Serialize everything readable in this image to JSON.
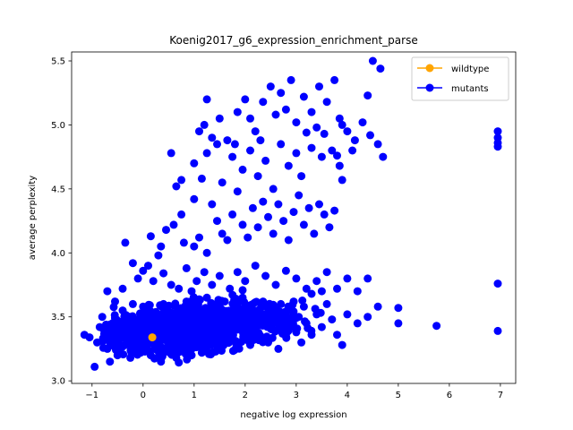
{
  "chart_data": {
    "type": "scatter",
    "title": "Koenig2017_g6_expression_enrichment_parse",
    "xlabel": "negative log expression",
    "ylabel": "average perplexity",
    "xlim": [
      -1.4,
      7.3
    ],
    "ylim": [
      2.98,
      5.57
    ],
    "xticks": [
      -1,
      0,
      1,
      2,
      3,
      4,
      5,
      6,
      7
    ],
    "yticks": [
      3.0,
      3.5,
      4.0,
      4.5,
      5.0,
      5.5
    ],
    "xtick_labels": [
      "−1",
      "0",
      "1",
      "2",
      "3",
      "4",
      "5",
      "6",
      "7"
    ],
    "ytick_labels": [
      "3.0",
      "3.5",
      "4.0",
      "4.5",
      "5.0",
      "5.5"
    ],
    "grid": false,
    "legend_position": "top-right",
    "series": [
      {
        "name": "wildtype",
        "color": "#ffa500",
        "points": [
          [
            0.18,
            3.34
          ]
        ]
      },
      {
        "name": "mutants",
        "color": "#0000ff",
        "points": [
          [
            -1.15,
            3.36
          ],
          [
            -1.05,
            3.34
          ],
          [
            -0.95,
            3.11
          ],
          [
            -0.9,
            3.3
          ],
          [
            -0.85,
            3.42
          ],
          [
            -0.8,
            3.5
          ],
          [
            -0.75,
            3.38
          ],
          [
            -0.7,
            3.25
          ],
          [
            -0.65,
            3.15
          ],
          [
            -0.6,
            3.45
          ],
          [
            -0.55,
            3.62
          ],
          [
            -0.5,
            3.2
          ],
          [
            -0.45,
            3.35
          ],
          [
            -0.4,
            3.55
          ],
          [
            -0.35,
            3.28
          ],
          [
            -0.3,
            3.4
          ],
          [
            -0.25,
            3.18
          ],
          [
            -0.2,
            3.6
          ],
          [
            -0.15,
            3.32
          ],
          [
            -0.1,
            3.48
          ],
          [
            -0.05,
            3.22
          ],
          [
            0.0,
            3.58
          ],
          [
            0.05,
            3.3
          ],
          [
            0.1,
            3.42
          ],
          [
            0.15,
            3.2
          ],
          [
            0.2,
            3.52
          ],
          [
            0.25,
            3.28
          ],
          [
            0.3,
            3.46
          ],
          [
            0.35,
            3.15
          ],
          [
            0.4,
            3.6
          ],
          [
            0.45,
            3.38
          ],
          [
            0.5,
            3.24
          ],
          [
            0.55,
            3.5
          ],
          [
            0.6,
            3.33
          ],
          [
            0.65,
            3.18
          ],
          [
            0.7,
            3.55
          ],
          [
            0.75,
            3.4
          ],
          [
            0.8,
            3.27
          ],
          [
            0.85,
            3.62
          ],
          [
            0.9,
            3.35
          ],
          [
            0.95,
            3.2
          ],
          [
            1.0,
            3.48
          ],
          [
            1.05,
            3.3
          ],
          [
            1.1,
            3.56
          ],
          [
            1.15,
            3.22
          ],
          [
            1.2,
            3.42
          ],
          [
            1.25,
            3.65
          ],
          [
            1.3,
            3.28
          ],
          [
            1.35,
            3.5
          ],
          [
            1.4,
            3.36
          ],
          [
            1.45,
            3.58
          ],
          [
            1.5,
            3.25
          ],
          [
            1.55,
            3.44
          ],
          [
            1.6,
            3.62
          ],
          [
            1.65,
            3.32
          ],
          [
            1.7,
            3.5
          ],
          [
            1.75,
            3.4
          ],
          [
            1.8,
            3.58
          ],
          [
            1.85,
            3.3
          ],
          [
            1.9,
            3.46
          ],
          [
            1.95,
            3.65
          ],
          [
            2.0,
            3.38
          ],
          [
            2.05,
            3.52
          ],
          [
            2.1,
            3.28
          ],
          [
            2.15,
            3.6
          ],
          [
            2.2,
            3.42
          ],
          [
            2.25,
            3.55
          ],
          [
            2.3,
            3.35
          ],
          [
            2.35,
            3.62
          ],
          [
            2.4,
            3.48
          ],
          [
            2.45,
            3.3
          ],
          [
            2.5,
            3.58
          ],
          [
            2.55,
            3.4
          ],
          [
            2.6,
            3.52
          ],
          [
            2.65,
            3.25
          ],
          [
            2.7,
            3.6
          ],
          [
            2.75,
            3.45
          ],
          [
            2.8,
            3.35
          ],
          [
            2.85,
            3.55
          ],
          [
            2.9,
            3.42
          ],
          [
            2.95,
            3.62
          ],
          [
            3.0,
            3.38
          ],
          [
            3.05,
            3.5
          ],
          [
            3.1,
            3.3
          ],
          [
            3.15,
            3.58
          ],
          [
            3.2,
            3.45
          ],
          [
            3.3,
            3.36
          ],
          [
            3.4,
            3.52
          ],
          [
            3.5,
            3.42
          ],
          [
            3.6,
            3.6
          ],
          [
            3.7,
            3.48
          ],
          [
            3.8,
            3.36
          ],
          [
            3.9,
            3.28
          ],
          [
            4.0,
            3.52
          ],
          [
            4.2,
            3.45
          ],
          [
            4.4,
            3.5
          ],
          [
            4.6,
            3.58
          ],
          [
            5.0,
            3.57
          ],
          [
            5.0,
            3.45
          ],
          [
            5.75,
            3.43
          ],
          [
            6.95,
            3.76
          ],
          [
            6.95,
            3.39
          ],
          [
            -0.7,
            3.7
          ],
          [
            -0.4,
            3.72
          ],
          [
            -0.35,
            4.08
          ],
          [
            -0.2,
            3.92
          ],
          [
            -0.1,
            3.8
          ],
          [
            0.0,
            3.86
          ],
          [
            0.1,
            3.9
          ],
          [
            0.2,
            3.78
          ],
          [
            0.3,
            3.98
          ],
          [
            0.4,
            3.84
          ],
          [
            0.55,
            3.75
          ],
          [
            0.7,
            3.72
          ],
          [
            0.85,
            3.88
          ],
          [
            0.95,
            3.7
          ],
          [
            1.05,
            3.78
          ],
          [
            1.2,
            3.85
          ],
          [
            1.35,
            3.75
          ],
          [
            1.5,
            3.82
          ],
          [
            1.7,
            3.72
          ],
          [
            1.85,
            3.85
          ],
          [
            2.0,
            3.78
          ],
          [
            2.2,
            3.9
          ],
          [
            2.4,
            3.82
          ],
          [
            2.6,
            3.75
          ],
          [
            2.8,
            3.86
          ],
          [
            3.0,
            3.8
          ],
          [
            3.2,
            3.72
          ],
          [
            3.4,
            3.78
          ],
          [
            3.6,
            3.85
          ],
          [
            3.8,
            3.72
          ],
          [
            4.0,
            3.8
          ],
          [
            4.2,
            3.7
          ],
          [
            4.4,
            3.8
          ],
          [
            3.3,
            3.68
          ],
          [
            3.5,
            3.7
          ],
          [
            0.15,
            4.13
          ],
          [
            0.35,
            4.05
          ],
          [
            0.45,
            4.18
          ],
          [
            0.6,
            4.22
          ],
          [
            0.75,
            4.3
          ],
          [
            0.8,
            4.08
          ],
          [
            1.0,
            4.05
          ],
          [
            1.1,
            4.12
          ],
          [
            1.25,
            4.0
          ],
          [
            1.35,
            4.38
          ],
          [
            1.45,
            4.25
          ],
          [
            1.55,
            4.15
          ],
          [
            1.65,
            4.1
          ],
          [
            1.75,
            4.3
          ],
          [
            1.85,
            4.48
          ],
          [
            1.95,
            4.22
          ],
          [
            2.05,
            4.12
          ],
          [
            2.15,
            4.35
          ],
          [
            2.25,
            4.2
          ],
          [
            2.35,
            4.4
          ],
          [
            2.45,
            4.28
          ],
          [
            2.55,
            4.15
          ],
          [
            2.65,
            4.38
          ],
          [
            2.75,
            4.25
          ],
          [
            2.85,
            4.1
          ],
          [
            2.95,
            4.32
          ],
          [
            3.05,
            4.45
          ],
          [
            3.15,
            4.22
          ],
          [
            3.25,
            4.35
          ],
          [
            3.35,
            4.15
          ],
          [
            3.45,
            4.38
          ],
          [
            3.55,
            4.3
          ],
          [
            3.65,
            4.2
          ],
          [
            3.75,
            4.33
          ],
          [
            3.9,
            4.57
          ],
          [
            1.0,
            4.7
          ],
          [
            1.15,
            4.58
          ],
          [
            1.25,
            4.78
          ],
          [
            1.45,
            4.85
          ],
          [
            1.55,
            4.55
          ],
          [
            1.75,
            4.75
          ],
          [
            1.95,
            4.65
          ],
          [
            2.1,
            4.8
          ],
          [
            2.25,
            4.6
          ],
          [
            2.4,
            4.72
          ],
          [
            2.55,
            4.5
          ],
          [
            2.7,
            4.85
          ],
          [
            2.85,
            4.68
          ],
          [
            3.0,
            4.78
          ],
          [
            3.1,
            4.6
          ],
          [
            3.3,
            4.82
          ],
          [
            3.5,
            4.75
          ],
          [
            3.7,
            4.8
          ],
          [
            3.85,
            4.68
          ],
          [
            1.1,
            4.95
          ],
          [
            1.2,
            5.0
          ],
          [
            1.35,
            4.9
          ],
          [
            1.5,
            5.05
          ],
          [
            1.65,
            4.88
          ],
          [
            1.85,
            5.1
          ],
          [
            2.0,
            5.2
          ],
          [
            2.1,
            5.05
          ],
          [
            2.2,
            4.95
          ],
          [
            2.35,
            5.18
          ],
          [
            2.5,
            5.3
          ],
          [
            2.6,
            5.08
          ],
          [
            2.7,
            5.25
          ],
          [
            2.8,
            5.12
          ],
          [
            2.9,
            5.35
          ],
          [
            3.0,
            5.02
          ],
          [
            3.15,
            5.22
          ],
          [
            3.3,
            5.1
          ],
          [
            3.45,
            5.3
          ],
          [
            3.6,
            5.18
          ],
          [
            3.75,
            5.35
          ],
          [
            3.85,
            5.05
          ],
          [
            4.0,
            4.95
          ],
          [
            4.15,
            4.88
          ],
          [
            4.3,
            5.02
          ],
          [
            4.45,
            4.92
          ],
          [
            4.6,
            4.85
          ],
          [
            4.7,
            4.75
          ],
          [
            4.4,
            5.23
          ],
          [
            4.5,
            5.5
          ],
          [
            4.65,
            5.44
          ],
          [
            3.2,
            4.94
          ],
          [
            3.4,
            4.98
          ],
          [
            3.55,
            4.93
          ],
          [
            3.9,
            5.0
          ],
          [
            4.1,
            4.8
          ],
          [
            3.8,
            4.76
          ],
          [
            6.95,
            4.95
          ],
          [
            6.95,
            4.9
          ],
          [
            6.95,
            4.86
          ],
          [
            6.95,
            4.83
          ],
          [
            0.55,
            4.78
          ],
          [
            1.25,
            5.2
          ],
          [
            1.8,
            4.85
          ],
          [
            2.3,
            4.88
          ],
          [
            0.65,
            4.52
          ],
          [
            0.75,
            4.57
          ],
          [
            1.0,
            4.42
          ]
        ],
        "dense_cluster": {
          "x_range": [
            -0.8,
            3.8
          ],
          "y_range": [
            3.12,
            3.74
          ],
          "center": [
            1.0,
            3.42
          ]
        }
      }
    ]
  }
}
